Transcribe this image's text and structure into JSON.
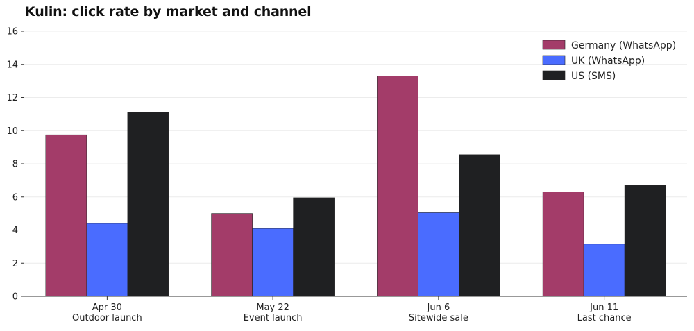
{
  "chart_data": {
    "type": "bar",
    "title": "Kulin: click rate by market and channel",
    "xlabel": "",
    "ylabel": "",
    "ylim": [
      0,
      16
    ],
    "yticks": [
      0,
      2,
      4,
      6,
      8,
      10,
      12,
      14,
      16
    ],
    "grid": true,
    "legend_position": "top-right",
    "categories": [
      [
        "Apr 30",
        "Outdoor launch"
      ],
      [
        "May 22",
        "Event launch"
      ],
      [
        "Jun 6",
        "Sitewide sale"
      ],
      [
        "Jun 11",
        "Last chance"
      ]
    ],
    "series": [
      {
        "name": "Germany (WhatsApp)",
        "color": "#a33c69",
        "values": [
          9.75,
          5.0,
          13.3,
          6.3
        ]
      },
      {
        "name": "UK (WhatsApp)",
        "color": "#4a6cff",
        "values": [
          4.4,
          4.1,
          5.05,
          3.15
        ]
      },
      {
        "name": "US (SMS)",
        "color": "#1f2022",
        "values": [
          11.1,
          5.95,
          8.55,
          6.7
        ]
      }
    ]
  }
}
